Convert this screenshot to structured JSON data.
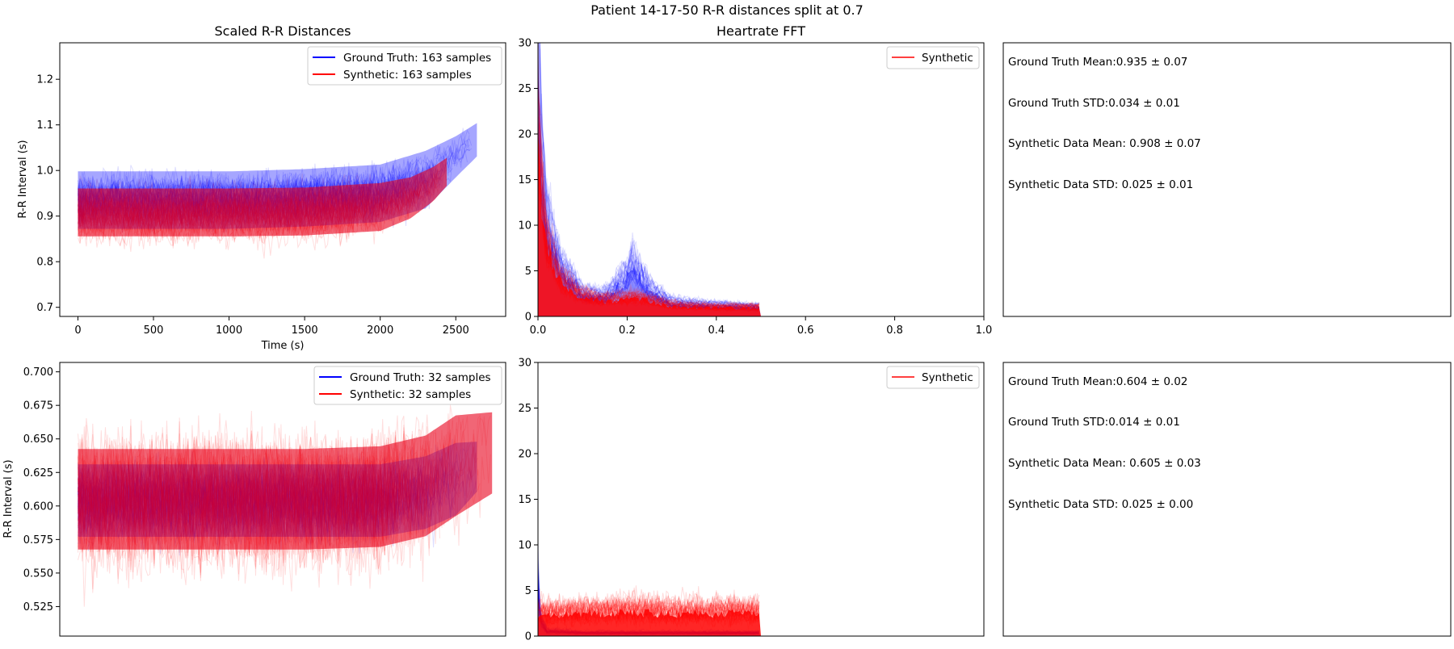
{
  "figure": {
    "suptitle": "Patient 14-17-50 R-R distances split at 0.7"
  },
  "colors": {
    "ground_truth": "#0000ff",
    "synthetic": "#ff0000",
    "synthetic_dense": "#e8001a",
    "mixed": "#8a1ce0"
  },
  "chart_data": [
    {
      "id": "rr-top",
      "type": "line",
      "title": "Scaled R-R Distances",
      "xlabel": "Time (s)",
      "ylabel": "R-R Interval (s)",
      "xlim": [
        -120,
        2830
      ],
      "ylim": [
        0.68,
        1.28
      ],
      "xticks": [
        0,
        500,
        1000,
        1500,
        2000,
        2500
      ],
      "xtick_labels": [
        "0",
        "500",
        "1000",
        "1500",
        "2000",
        "2500"
      ],
      "yticks": [
        0.7,
        0.8,
        0.9,
        1.0,
        1.1,
        1.2
      ],
      "ytick_labels": [
        "0.7",
        "0.8",
        "0.9",
        "1.0",
        "1.1",
        "1.2"
      ],
      "legend_position": "top-right",
      "series": [
        {
          "name": "Ground Truth: 163 samples",
          "color": "#0000ff",
          "x": [
            0,
            500,
            1000,
            1500,
            2000,
            2300,
            2500,
            2650
          ],
          "y": [
            0.935,
            0.935,
            0.935,
            0.94,
            0.95,
            0.98,
            1.03,
            1.07
          ],
          "band": [
            0.07,
            0.07,
            0.07,
            0.07,
            0.07,
            0.07,
            0.05,
            0.04
          ]
        },
        {
          "name": "Synthetic: 163 samples",
          "color": "#ff0000",
          "x": [
            0,
            500,
            1000,
            1500,
            2000,
            2200,
            2350,
            2450
          ],
          "y": [
            0.908,
            0.908,
            0.908,
            0.91,
            0.92,
            0.94,
            0.97,
            1.0
          ],
          "band": [
            0.07,
            0.07,
            0.07,
            0.07,
            0.07,
            0.06,
            0.05,
            0.04
          ]
        }
      ]
    },
    {
      "id": "fft-top",
      "type": "area",
      "title": "Heartrate FFT",
      "xlabel": "",
      "ylabel": "",
      "xlim": [
        0,
        1.0
      ],
      "ylim": [
        0,
        30
      ],
      "xticks": [
        0.0,
        0.2,
        0.4,
        0.6,
        0.8,
        1.0
      ],
      "xtick_labels": [
        "0.0",
        "0.2",
        "0.4",
        "0.6",
        "0.8",
        "1.0"
      ],
      "yticks": [
        0,
        5,
        10,
        15,
        20,
        25,
        30
      ],
      "ytick_labels": [
        "0",
        "5",
        "10",
        "15",
        "20",
        "25",
        "30"
      ],
      "legend_position": "top-right",
      "legend": [
        "Synthetic"
      ],
      "series": [
        {
          "name": "Synthetic",
          "color": "#ff0000",
          "x": [
            0.0,
            0.01,
            0.02,
            0.05,
            0.1,
            0.15,
            0.2,
            0.22,
            0.25,
            0.3,
            0.4,
            0.5
          ],
          "y": [
            20,
            12,
            8,
            4,
            2.2,
            1.8,
            2.0,
            2.1,
            1.8,
            1.2,
            1.0,
            1.0
          ]
        },
        {
          "color": "#0000ff",
          "x": [
            0.0,
            0.01,
            0.02,
            0.05,
            0.1,
            0.15,
            0.2,
            0.21,
            0.25,
            0.3,
            0.4,
            0.5
          ],
          "y": [
            27,
            15,
            10,
            5.5,
            2.5,
            2.2,
            4.5,
            6.0,
            3.0,
            1.5,
            1.2,
            1.0
          ]
        }
      ]
    },
    {
      "id": "rr-bottom",
      "type": "line",
      "title": "",
      "xlabel": "",
      "ylabel": "R-R Interval (s)",
      "xlim": [
        -120,
        2830
      ],
      "ylim": [
        0.503,
        0.707
      ],
      "xticks": [],
      "yticks": [
        0.525,
        0.55,
        0.575,
        0.6,
        0.625,
        0.65,
        0.675,
        0.7
      ],
      "ytick_labels": [
        "0.525",
        "0.550",
        "0.575",
        "0.600",
        "0.625",
        "0.650",
        "0.675",
        "0.700"
      ],
      "legend_position": "top-right",
      "series": [
        {
          "name": "Ground Truth: 32 samples",
          "color": "#0000ff",
          "x": [
            0,
            500,
            1000,
            1500,
            2000,
            2300,
            2500,
            2650
          ],
          "y": [
            0.604,
            0.604,
            0.604,
            0.604,
            0.604,
            0.61,
            0.62,
            0.63
          ],
          "band": [
            0.03,
            0.03,
            0.03,
            0.03,
            0.03,
            0.03,
            0.03,
            0.02
          ]
        },
        {
          "name": "Synthetic: 32 samples",
          "color": "#ff0000",
          "x": [
            0,
            500,
            1000,
            1500,
            2000,
            2300,
            2500,
            2750
          ],
          "y": [
            0.605,
            0.605,
            0.605,
            0.605,
            0.607,
            0.615,
            0.63,
            0.64
          ],
          "band": [
            0.05,
            0.05,
            0.05,
            0.05,
            0.05,
            0.05,
            0.05,
            0.04
          ]
        }
      ]
    },
    {
      "id": "fft-bottom",
      "type": "area",
      "title": "",
      "xlabel": "",
      "ylabel": "",
      "xlim": [
        0,
        1.0
      ],
      "ylim": [
        0,
        30
      ],
      "xticks": [],
      "yticks": [
        0,
        5,
        10,
        15,
        20,
        25,
        30
      ],
      "ytick_labels": [
        "0",
        "5",
        "10",
        "15",
        "20",
        "25",
        "30"
      ],
      "legend_position": "top-right",
      "legend": [
        "Synthetic"
      ],
      "series": [
        {
          "name": "Synthetic",
          "color": "#ff0000",
          "x": [
            0.0,
            0.1,
            0.2,
            0.3,
            0.4,
            0.5
          ],
          "y": [
            2.5,
            2.6,
            2.8,
            2.6,
            2.7,
            2.6
          ]
        },
        {
          "color": "#0000ff",
          "x": [
            0.0,
            0.005,
            0.02,
            0.1,
            0.3,
            0.5
          ],
          "y": [
            6.5,
            2.0,
            0.6,
            0.4,
            0.4,
            0.4
          ]
        }
      ]
    }
  ],
  "stats_top": [
    "Ground Truth Mean:0.935 ± 0.07",
    "Ground Truth STD:0.034 ± 0.01",
    "Synthetic Data Mean: 0.908 ± 0.07",
    "Synthetic Data STD: 0.025 ± 0.01"
  ],
  "stats_bottom": [
    "Ground Truth Mean:0.604 ± 0.02",
    "Ground Truth STD:0.014 ± 0.01",
    "Synthetic Data Mean: 0.605 ± 0.03",
    "Synthetic Data STD: 0.025 ± 0.00"
  ]
}
